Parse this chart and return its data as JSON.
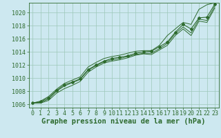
{
  "background_color": "#cde8f0",
  "plot_bg_color": "#cde8f0",
  "grid_color": "#9dc8b8",
  "line_color": "#2d6a2d",
  "xlabel": "Graphe pression niveau de la mer (hPa)",
  "xlabel_fontsize": 7.5,
  "xlim": [
    -0.5,
    23.5
  ],
  "ylim": [
    1005.5,
    1021.5
  ],
  "xticks": [
    0,
    1,
    2,
    3,
    4,
    5,
    6,
    7,
    8,
    9,
    10,
    11,
    12,
    13,
    14,
    15,
    16,
    17,
    18,
    19,
    20,
    21,
    22,
    23
  ],
  "yticks": [
    1006,
    1008,
    1010,
    1012,
    1014,
    1016,
    1018,
    1020
  ],
  "tick_fontsize": 6.0,
  "main_line": [
    1006.2,
    1006.4,
    1007.0,
    1008.1,
    1009.0,
    1009.4,
    1009.9,
    1011.3,
    1012.0,
    1012.6,
    1013.0,
    1013.2,
    1013.4,
    1013.8,
    1014.0,
    1014.1,
    1014.8,
    1015.5,
    1017.0,
    1018.2,
    1017.5,
    1019.2,
    1019.3,
    1021.3
  ],
  "line_top": [
    1006.2,
    1006.5,
    1007.2,
    1008.3,
    1009.2,
    1009.7,
    1010.2,
    1011.7,
    1012.4,
    1013.0,
    1013.3,
    1013.5,
    1013.8,
    1014.1,
    1014.2,
    1014.2,
    1015.0,
    1016.5,
    1017.5,
    1018.5,
    1018.2,
    1020.5,
    1021.2,
    1021.5
  ],
  "line_mid": [
    1006.2,
    1006.3,
    1006.8,
    1008.0,
    1008.8,
    1009.3,
    1009.8,
    1011.2,
    1011.9,
    1012.5,
    1012.8,
    1013.0,
    1013.3,
    1013.6,
    1013.8,
    1013.8,
    1014.5,
    1015.3,
    1016.8,
    1017.8,
    1016.9,
    1019.0,
    1018.8,
    1021.0
  ],
  "line_bot": [
    1006.2,
    1006.2,
    1006.6,
    1007.7,
    1008.4,
    1008.9,
    1009.5,
    1010.9,
    1011.7,
    1012.3,
    1012.6,
    1012.8,
    1013.1,
    1013.5,
    1013.7,
    1013.6,
    1014.3,
    1015.0,
    1016.5,
    1017.5,
    1016.5,
    1018.7,
    1018.5,
    1020.7
  ]
}
